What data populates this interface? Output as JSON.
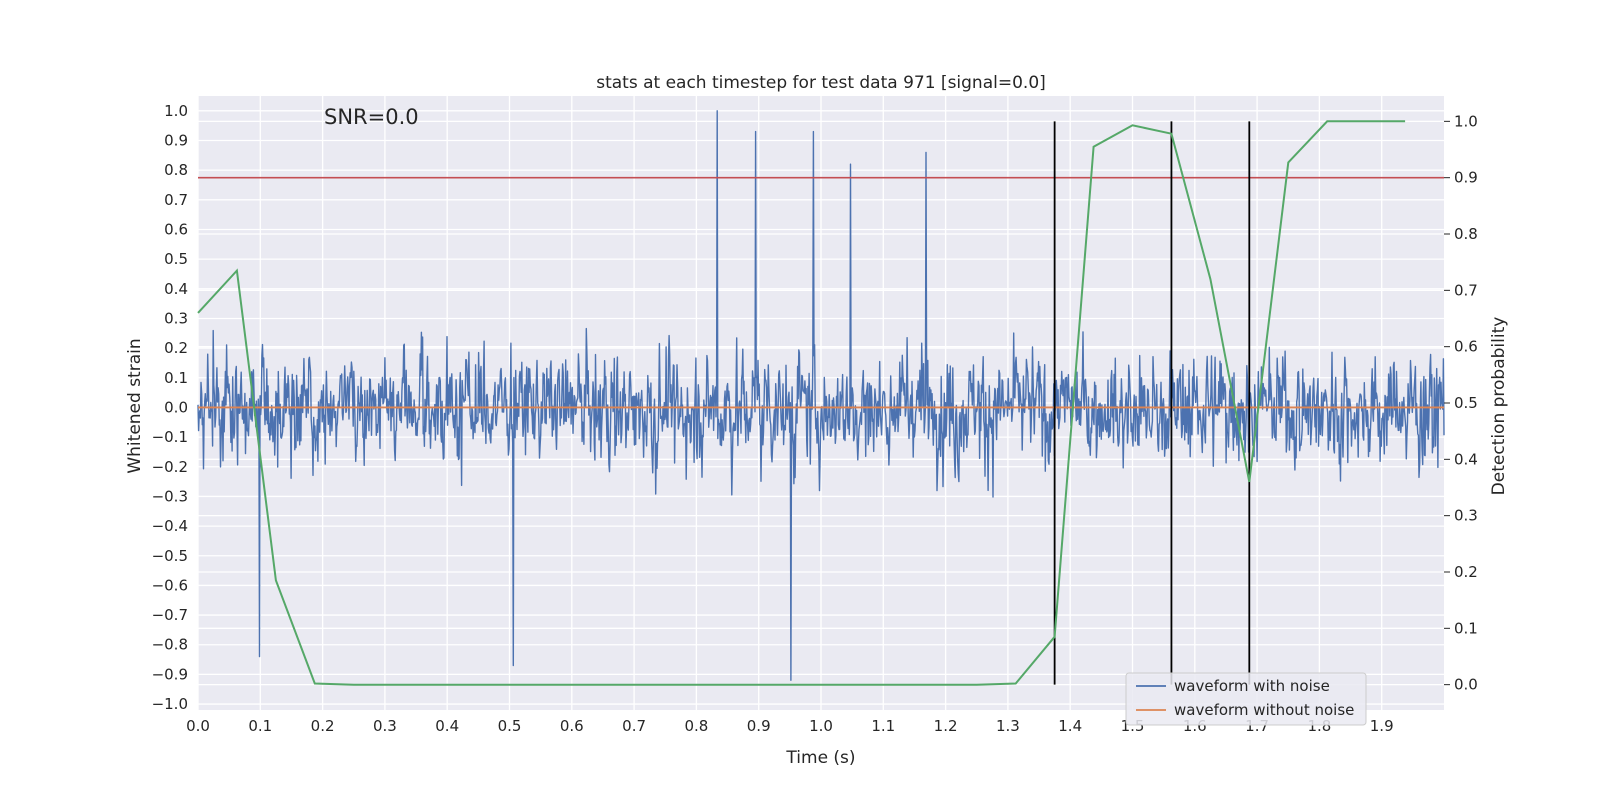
{
  "chart_data": {
    "type": "line",
    "title": "stats at each timestep for test data 971 [signal=0.0]",
    "annotation": "SNR=0.0",
    "xlabel": "Time (s)",
    "ylabel": "Whitened strain",
    "y2label": "Detection probability",
    "xlim": [
      0.0,
      2.0
    ],
    "ylim": [
      -1.02,
      1.05
    ],
    "y2lim": [
      -0.045,
      1.045
    ],
    "x_ticks": [
      "0.0",
      "0.1",
      "0.2",
      "0.3",
      "0.4",
      "0.5",
      "0.6",
      "0.7",
      "0.8",
      "0.9",
      "1.0",
      "1.1",
      "1.2",
      "1.3",
      "1.4",
      "1.5",
      "1.6",
      "1.7",
      "1.8",
      "1.9"
    ],
    "y_ticks": [
      "1.0",
      "0.9",
      "0.8",
      "0.7",
      "0.6",
      "0.5",
      "0.4",
      "0.3",
      "0.2",
      "0.1",
      "0.0",
      "−0.1",
      "−0.2",
      "−0.3",
      "−0.4",
      "−0.5",
      "−0.6",
      "−0.7",
      "−0.8",
      "−0.9",
      "−1.0"
    ],
    "y2_ticks": [
      "1.0",
      "0.9",
      "0.8",
      "0.7",
      "0.6",
      "0.5",
      "0.4",
      "0.3",
      "0.2",
      "0.1",
      "0.0"
    ],
    "grid": true,
    "legend_position": "lower-right",
    "colors": {
      "noisy": "#4c72b0",
      "clean": "#dd8452",
      "probability": "#55a868",
      "threshold": "#c44e52",
      "vlines": "#000000",
      "plot_bg": "#eaeaf2",
      "grid": "#ffffff"
    },
    "series": [
      {
        "name": "waveform with noise",
        "axis": "left",
        "style": "noise",
        "x_range": [
          0.0,
          2.0
        ],
        "n_points": 2048,
        "amplitude_range": [
          -0.92,
          1.0
        ]
      },
      {
        "name": "waveform without noise",
        "axis": "left",
        "x": [
          0.0,
          2.0
        ],
        "y": [
          0.0,
          0.0
        ]
      },
      {
        "name": "detection probability",
        "axis": "right",
        "x": [
          0.0,
          0.0625,
          0.125,
          0.1875,
          0.25,
          0.3125,
          0.375,
          0.4375,
          0.5,
          0.5625,
          0.625,
          0.6875,
          0.75,
          0.8125,
          0.875,
          0.9375,
          1.0,
          1.0625,
          1.125,
          1.1875,
          1.25,
          1.3125,
          1.375,
          1.4375,
          1.5,
          1.5625,
          1.625,
          1.6875,
          1.75,
          1.8125,
          1.875,
          1.9375
        ],
        "y": [
          0.66,
          0.735,
          0.185,
          0.002,
          0.0,
          0.0,
          0.0,
          0.0,
          0.0,
          0.0,
          0.0,
          0.0,
          0.0,
          0.0,
          0.0,
          0.0,
          0.0,
          0.0,
          0.0,
          0.0,
          0.0,
          0.002,
          0.085,
          0.955,
          0.993,
          0.978,
          0.72,
          0.36,
          0.927,
          1.0,
          1.0,
          1.0
        ]
      }
    ],
    "threshold_y2": 0.9,
    "vlines_x": [
      1.375,
      1.5625,
      1.6875
    ],
    "vlines_y2_range": [
      0.0,
      1.0
    ],
    "notable_peaks": [
      {
        "x": 0.833,
        "y": 1.0
      },
      {
        "x": 0.895,
        "y": 0.93
      },
      {
        "x": 0.988,
        "y": 0.93
      },
      {
        "x": 1.047,
        "y": 0.82
      },
      {
        "x": 1.169,
        "y": 0.86
      },
      {
        "x": 0.952,
        "y": -0.92
      },
      {
        "x": 0.099,
        "y": -0.84
      },
      {
        "x": 0.506,
        "y": -0.87
      }
    ]
  }
}
